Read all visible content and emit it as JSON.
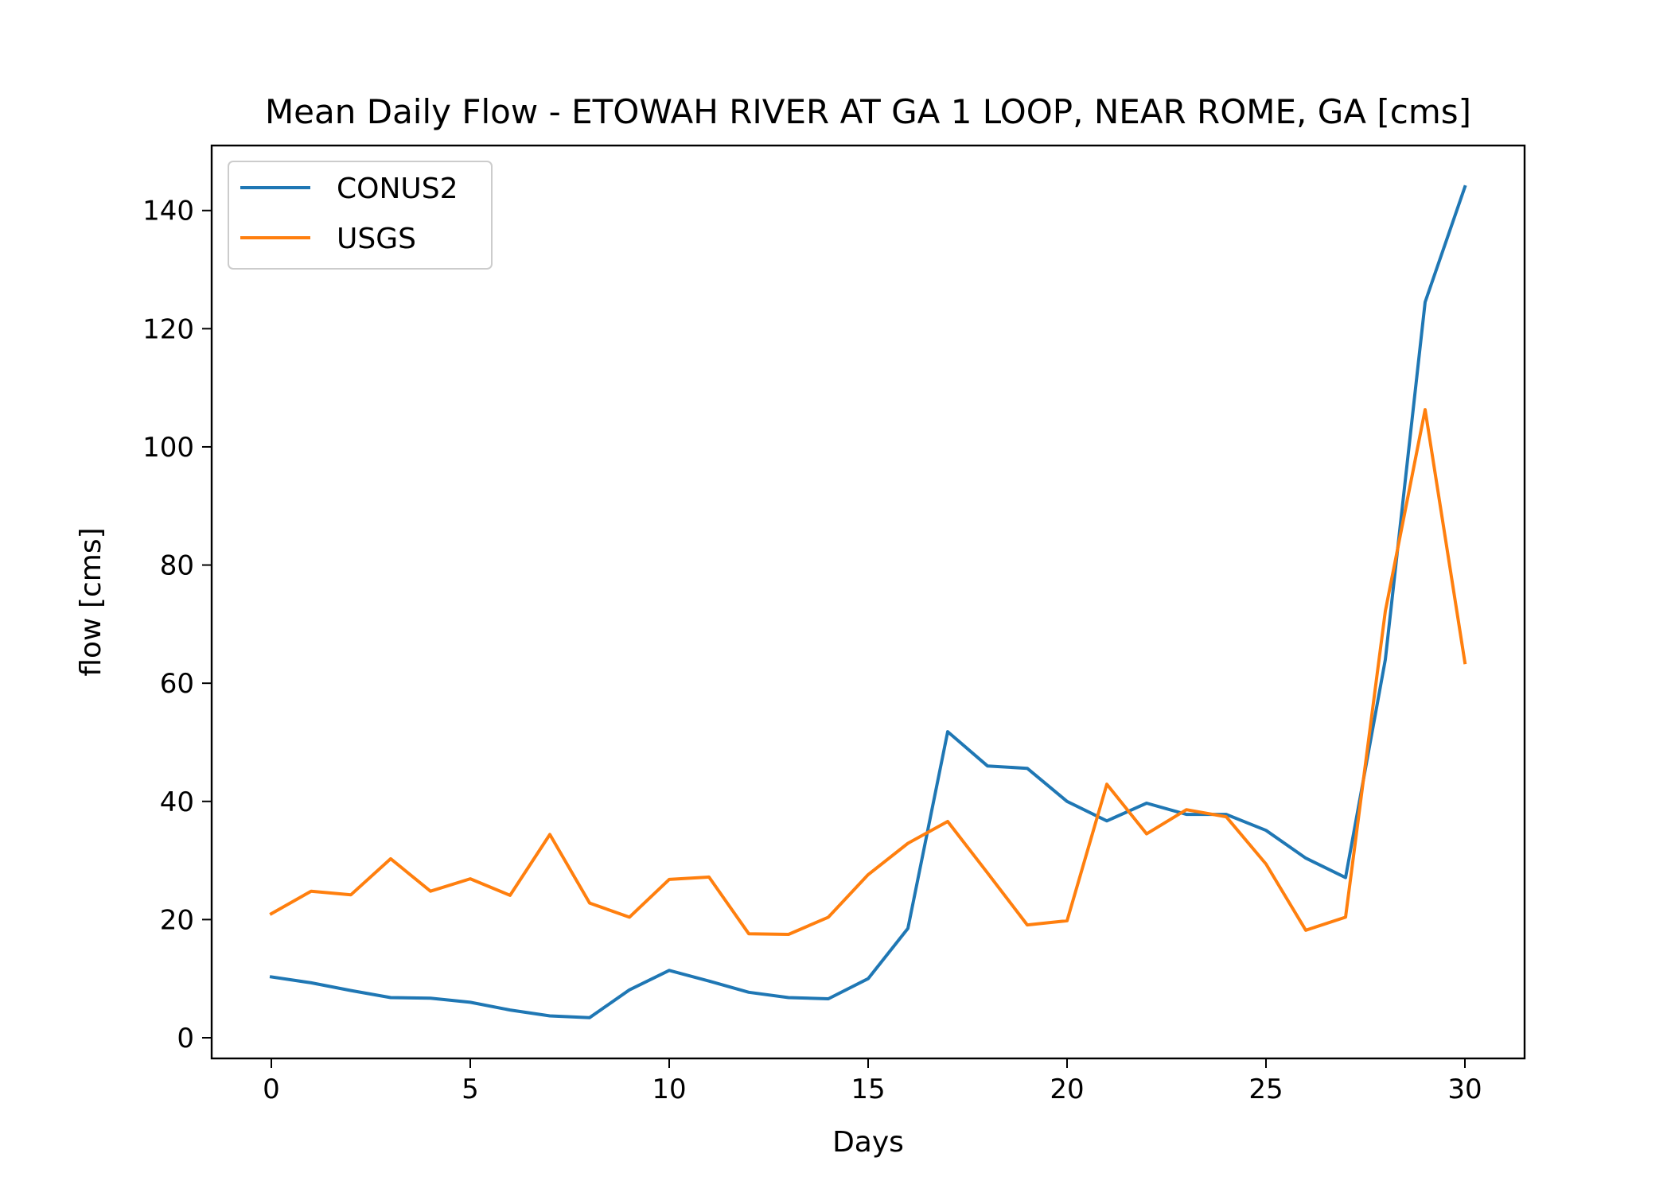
{
  "chart_data": {
    "type": "line",
    "title": "Mean Daily Flow - ETOWAH RIVER AT GA 1 LOOP, NEAR ROME, GA [cms]",
    "xlabel": "Days",
    "ylabel": "flow [cms]",
    "xlim": [
      -1.5,
      31.5
    ],
    "ylim": [
      -3.5,
      151
    ],
    "xticks": [
      0,
      5,
      10,
      15,
      20,
      25,
      30
    ],
    "xtick_labels": [
      "0",
      "5",
      "10",
      "15",
      "20",
      "25",
      "30"
    ],
    "yticks": [
      0,
      20,
      40,
      60,
      80,
      100,
      120,
      140
    ],
    "ytick_labels": [
      "0",
      "20",
      "40",
      "60",
      "80",
      "100",
      "120",
      "140"
    ],
    "grid": false,
    "legend_position": "top-left",
    "x": [
      0,
      1,
      2,
      3,
      4,
      5,
      6,
      7,
      8,
      9,
      10,
      11,
      12,
      13,
      14,
      15,
      16,
      17,
      18,
      19,
      20,
      21,
      22,
      23,
      24,
      25,
      26,
      27,
      28,
      29,
      30
    ],
    "series": [
      {
        "name": "CONUS2",
        "color": "#1f77b4",
        "values": [
          10.3,
          9.3,
          8.0,
          6.8,
          6.7,
          6.0,
          4.7,
          3.7,
          3.4,
          8.1,
          11.4,
          9.6,
          7.7,
          6.8,
          6.6,
          10.0,
          18.5,
          51.8,
          46.0,
          45.6,
          40.0,
          36.7,
          39.7,
          37.8,
          37.8,
          35.1,
          30.4,
          27.1,
          64.0,
          124.5,
          144.0
        ]
      },
      {
        "name": "USGS",
        "color": "#ff7f0e",
        "values": [
          21.0,
          24.8,
          24.2,
          30.3,
          24.8,
          26.9,
          24.1,
          34.4,
          22.8,
          20.4,
          26.8,
          27.2,
          17.6,
          17.5,
          20.4,
          27.6,
          32.9,
          36.6,
          27.9,
          19.1,
          19.8,
          42.9,
          34.5,
          38.6,
          37.4,
          29.4,
          18.2,
          20.4,
          72.2,
          106.3,
          63.5
        ]
      }
    ]
  }
}
